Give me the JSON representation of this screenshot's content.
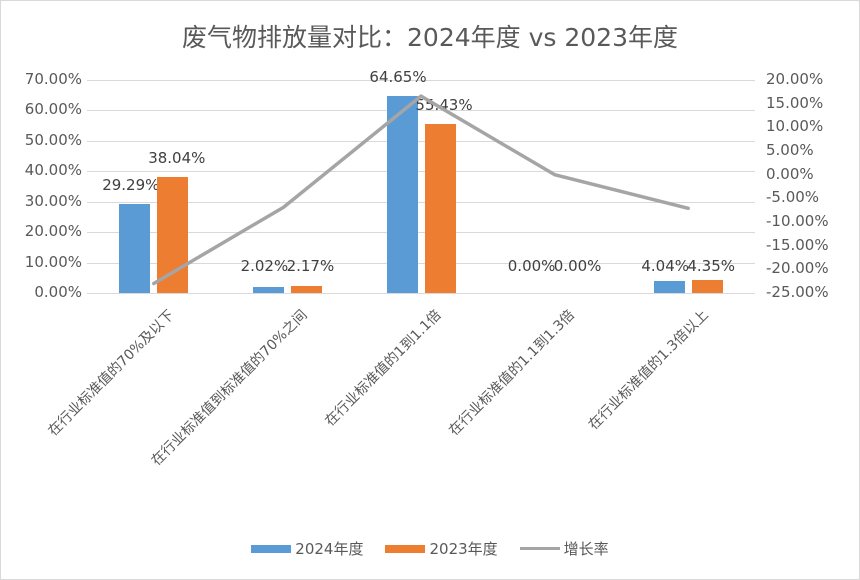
{
  "chart_data": {
    "type": "bar",
    "title": "废气物排放量对比：2024年度 vs 2023年度",
    "categories": [
      "在行业标准值的70%及以下",
      "在行业标准值到标准值的70%之间",
      "在行业标准值的1到1.1倍",
      "在行业标准值的1.1到1.3倍",
      "在行业标准值的1.3倍以上"
    ],
    "series": [
      {
        "name": "2024年度",
        "type": "bar",
        "axis": "left",
        "color": "#5b9bd5",
        "values": [
          29.29,
          2.02,
          64.65,
          0.0,
          4.04
        ],
        "labels": [
          "29.29%",
          "2.02%",
          "64.65%",
          "0.00%",
          "4.04%"
        ]
      },
      {
        "name": "2023年度",
        "type": "bar",
        "axis": "left",
        "color": "#ed7d31",
        "values": [
          38.04,
          2.17,
          55.43,
          0.0,
          4.35
        ],
        "labels": [
          "38.04%",
          "2.17%",
          "55.43%",
          "0.00%",
          "4.35%"
        ]
      },
      {
        "name": "增长率",
        "type": "line",
        "axis": "right",
        "color": "#a5a5a5",
        "values": [
          -23.0,
          -6.9,
          16.6,
          0.0,
          -7.1
        ]
      }
    ],
    "xlabel": "",
    "ylabel": "",
    "ylim": [
      0,
      70
    ],
    "y2lim": [
      -25,
      20
    ],
    "left_ticks": [
      "70.00%",
      "60.00%",
      "50.00%",
      "40.00%",
      "30.00%",
      "20.00%",
      "10.00%",
      "0.00%"
    ],
    "right_ticks": [
      "20.00%",
      "15.00%",
      "10.00%",
      "5.00%",
      "0.00%",
      "-5.00%",
      "-10.00%",
      "-15.00%",
      "-20.00%",
      "-25.00%"
    ],
    "grid": true,
    "legend_position": "bottom"
  },
  "legend": {
    "s1": "2024年度",
    "s2": "2023年度",
    "s3": "增长率"
  }
}
